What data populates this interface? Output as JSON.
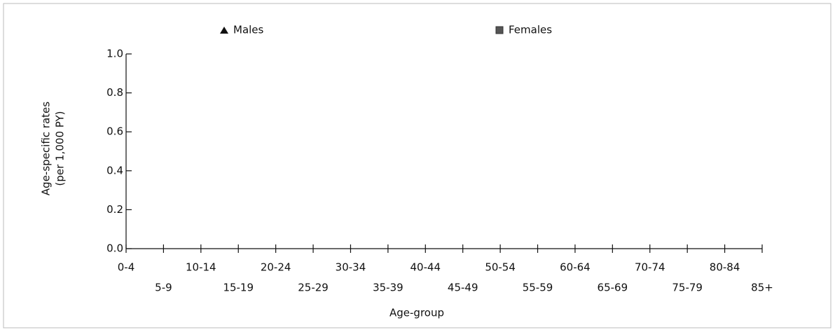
{
  "chart_data": {
    "type": "line",
    "xlabel": "Age-group",
    "ylabel": [
      "Age-specific rates",
      "(per 1,000 PY)"
    ],
    "categories": [
      "0-4",
      "5-9",
      "10-14",
      "15-19",
      "20-24",
      "25-29",
      "30-34",
      "35-39",
      "40-44",
      "45-49",
      "50-54",
      "55-59",
      "60-64",
      "65-69",
      "70-74",
      "75-79",
      "80-84",
      "85+"
    ],
    "series": [
      {
        "name": "Males",
        "color": "#111111",
        "marker": "triangle",
        "values": [
          null,
          null,
          null,
          null,
          null,
          null,
          null,
          null,
          null,
          null,
          null,
          null,
          null,
          null,
          null,
          null,
          null,
          null
        ]
      },
      {
        "name": "Females",
        "color": "#555555",
        "marker": "square",
        "values": [
          null,
          null,
          null,
          null,
          null,
          null,
          null,
          null,
          null,
          null,
          null,
          null,
          null,
          null,
          null,
          null,
          null,
          null
        ]
      }
    ],
    "ylim": [
      0,
      1
    ],
    "yticks": [
      {
        "value": 0,
        "label": "0.0"
      },
      0.2,
      0.4,
      0.6,
      0.8,
      {
        "value": 1,
        "label": "1.0"
      }
    ],
    "grid": false
  }
}
